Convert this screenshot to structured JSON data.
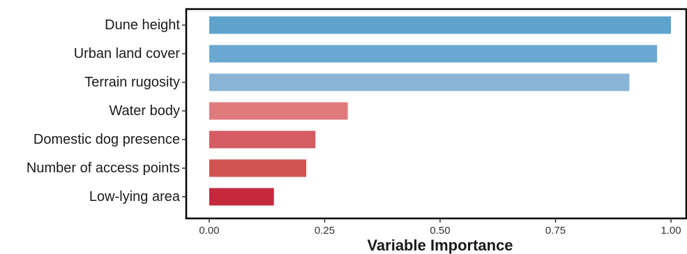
{
  "chart_data": {
    "type": "bar",
    "orientation": "horizontal",
    "categories": [
      "Dune height",
      "Urban land cover",
      "Terrain rugosity",
      "Water body",
      "Domestic dog presence",
      "Number of access points",
      "Low-lying area"
    ],
    "values": [
      1.0,
      0.97,
      0.91,
      0.3,
      0.23,
      0.21,
      0.14
    ],
    "colors": [
      "#5ea3cb",
      "#6aa8d1",
      "#8ab4d6",
      "#e07b7d",
      "#d55c63",
      "#d05552",
      "#c6283e"
    ],
    "xlabel": "Variable Importance",
    "ylabel": "",
    "xlim": [
      0,
      1
    ],
    "xticks": [
      0,
      0.25,
      0.5,
      0.75,
      1.0
    ],
    "xtick_labels": [
      "0.00",
      "0.25",
      "0.50",
      "0.75",
      "1.00"
    ],
    "grid": false,
    "legend": "none"
  }
}
